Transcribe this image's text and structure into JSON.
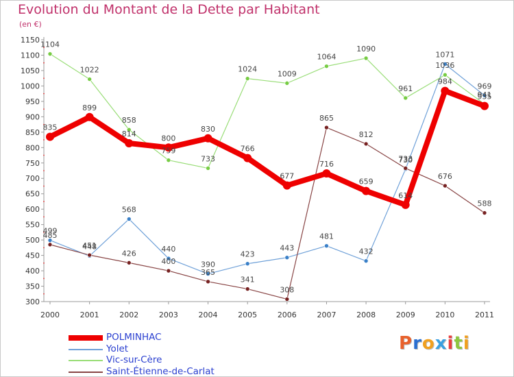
{
  "title": "Evolution du Montant de la Dette par Habitant",
  "unit": "(en €)",
  "brand": {
    "text": "Proxiti",
    "letter_colors": [
      "#e8612c",
      "#2a6fd0",
      "#f0a020",
      "#3aa0e0",
      "#e84040",
      "#8dc63f",
      "#f0a020"
    ]
  },
  "chart_data": {
    "type": "line",
    "title": "Evolution du Montant de la Dette par Habitant",
    "ylabel": "(en €)",
    "xlabel": "",
    "x": [
      "2000",
      "2001",
      "2002",
      "2003",
      "2004",
      "2005",
      "2006",
      "2007",
      "2008",
      "2009",
      "2010",
      "2011"
    ],
    "ylim": [
      300,
      1150
    ],
    "yticks": [
      300,
      350,
      400,
      450,
      500,
      550,
      600,
      650,
      700,
      750,
      800,
      850,
      900,
      950,
      1000,
      1050,
      1100,
      1150
    ],
    "grid": false,
    "legend_position": "bottom-left",
    "series": [
      {
        "name": "POLMINHAC",
        "color": "#ee0000",
        "marker": "#ee0000",
        "width": 8,
        "values": [
          835,
          899,
          814,
          800,
          830,
          766,
          677,
          716,
          659,
          614,
          984,
          935
        ]
      },
      {
        "name": "Yolet",
        "color": "#6ea0d8",
        "marker": "#3a80c8",
        "width": 1.2,
        "values": [
          499,
          448,
          568,
          440,
          390,
          423,
          443,
          481,
          432,
          730,
          1071,
          969
        ]
      },
      {
        "name": "Vic-sur-Cère",
        "color": "#99dd77",
        "marker": "#77cc44",
        "width": 1.2,
        "values": [
          1104,
          1022,
          858,
          759,
          733,
          1024,
          1009,
          1064,
          1090,
          961,
          1036,
          941
        ]
      },
      {
        "name": "Saint-Étienne-de-Carlat",
        "color": "#884444",
        "marker": "#772222",
        "width": 1.2,
        "values": [
          485,
          451,
          426,
          400,
          365,
          341,
          308,
          865,
          812,
          733,
          676,
          588
        ]
      }
    ]
  }
}
